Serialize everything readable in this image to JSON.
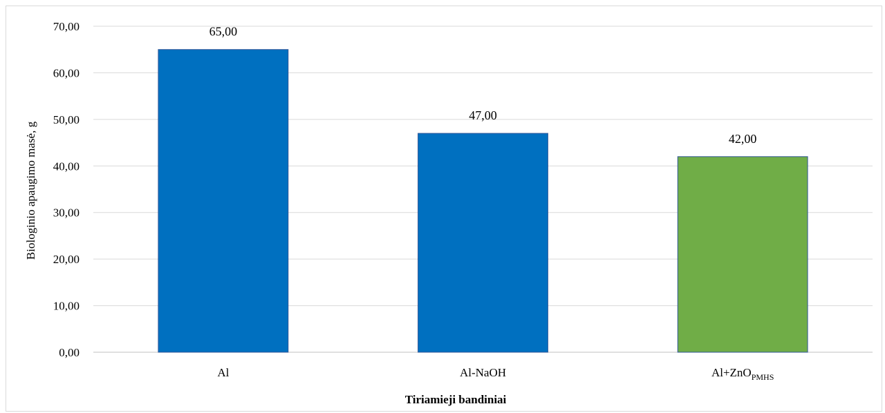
{
  "chart_data": {
    "type": "bar",
    "categories": [
      "Al",
      "Al-NaOH",
      "Al+ZnO"
    ],
    "category_subscripts": [
      "",
      "",
      "PMHS"
    ],
    "values": [
      65.0,
      47.0,
      42.0
    ],
    "value_labels": [
      "65,00",
      "47,00",
      "42,00"
    ],
    "bar_colors": [
      "#0070c0",
      "#0070c0",
      "#70ad47"
    ],
    "bar_border_color": "#2f5597",
    "title": "",
    "xlabel": "Tiriamieji bandiniai",
    "ylabel": "Biologinio apaugimo masė, g",
    "ylim": [
      0,
      70
    ],
    "yticks": [
      0,
      10,
      20,
      30,
      40,
      50,
      60,
      70
    ],
    "ytick_labels": [
      "0,00",
      "10,00",
      "20,00",
      "30,00",
      "40,00",
      "50,00",
      "60,00",
      "70,00"
    ],
    "grid": true,
    "legend": "none"
  }
}
